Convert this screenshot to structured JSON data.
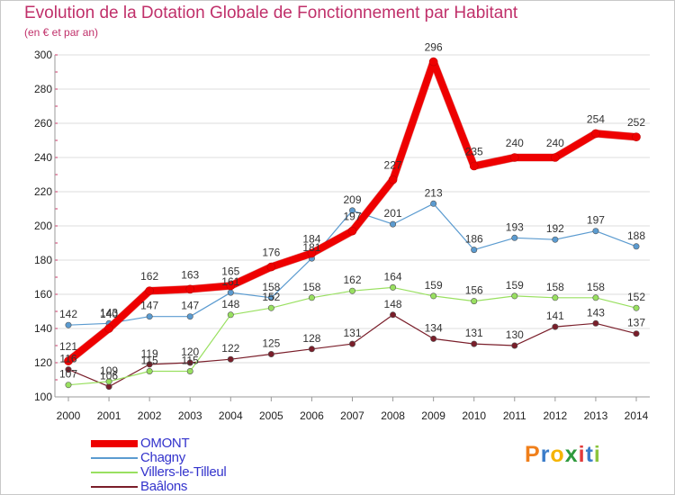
{
  "header": {
    "title": "Evolution de la Dotation Globale de Fonctionnement par Habitant",
    "subtitle": "(en € et par an)"
  },
  "logo": {
    "text": "Proxiti"
  },
  "colors": {
    "title": "#c0306a",
    "legend_text": "#3333cc",
    "axis_text": "#222222",
    "grid": "#dddddd"
  },
  "chart_data": {
    "type": "line",
    "title": "Evolution de la Dotation Globale de Fonctionnement par Habitant",
    "subtitle": "(en € et par an)",
    "xlabel": "",
    "ylabel": "",
    "x": [
      "2000",
      "2001",
      "2002",
      "2003",
      "2004",
      "2005",
      "2006",
      "2007",
      "2008",
      "2009",
      "2010",
      "2011",
      "2012",
      "2013",
      "2014"
    ],
    "yticks": [
      100,
      120,
      140,
      160,
      180,
      200,
      220,
      240,
      260,
      280,
      300
    ],
    "ylim": [
      100,
      300
    ],
    "grid": true,
    "legend_position": "bottom-left",
    "series": [
      {
        "name": "OMONT",
        "color": "#ee0000",
        "values": [
          121,
          140,
          162,
          163,
          165,
          176,
          184,
          197,
          227,
          296,
          235,
          240,
          240,
          254,
          252
        ]
      },
      {
        "name": "Chagny",
        "color": "#5b9bd0",
        "values": [
          142,
          143,
          147,
          147,
          161,
          158,
          181,
          209,
          201,
          213,
          186,
          193,
          192,
          197,
          188
        ]
      },
      {
        "name": "Villers-le-Tilleul",
        "color": "#99e060",
        "values": [
          107,
          109,
          115,
          115,
          148,
          152,
          158,
          162,
          164,
          159,
          156,
          159,
          158,
          158,
          152
        ]
      },
      {
        "name": "Baâlons",
        "color": "#7a1e2a",
        "values": [
          116,
          106,
          119,
          120,
          122,
          125,
          128,
          131,
          148,
          134,
          131,
          130,
          141,
          143,
          137
        ]
      }
    ]
  }
}
